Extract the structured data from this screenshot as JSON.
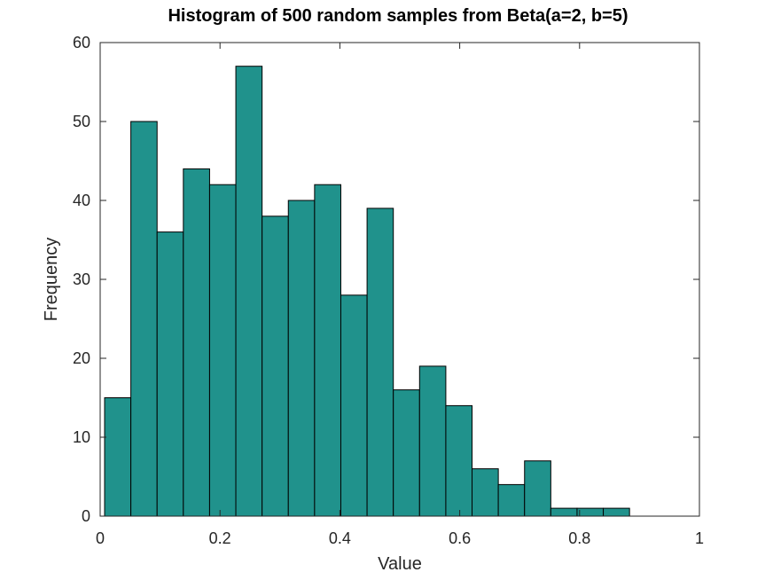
{
  "chart_data": {
    "type": "bar",
    "title": "Histogram of 500 random samples from Beta(a=2, b=5)",
    "xlabel": "Value",
    "ylabel": "Frequency",
    "xlim": [
      0,
      1
    ],
    "ylim": [
      0,
      60
    ],
    "xticks": [
      0,
      0.2,
      0.4,
      0.6,
      0.8,
      1
    ],
    "xtick_labels": [
      "0",
      "0.2",
      "0.4",
      "0.6",
      "0.8",
      "1"
    ],
    "yticks": [
      0,
      10,
      20,
      30,
      40,
      50,
      60
    ],
    "ytick_labels": [
      "0",
      "10",
      "20",
      "30",
      "40",
      "50",
      "60"
    ],
    "bin_start": 0.0074,
    "bin_width": 0.0438,
    "values": [
      15,
      50,
      36,
      44,
      42,
      57,
      38,
      40,
      42,
      28,
      39,
      16,
      19,
      14,
      6,
      4,
      7,
      1,
      1,
      1
    ],
    "bar_color": "#20928c",
    "edge_color": "#000000",
    "grid": false,
    "legend": "none"
  }
}
